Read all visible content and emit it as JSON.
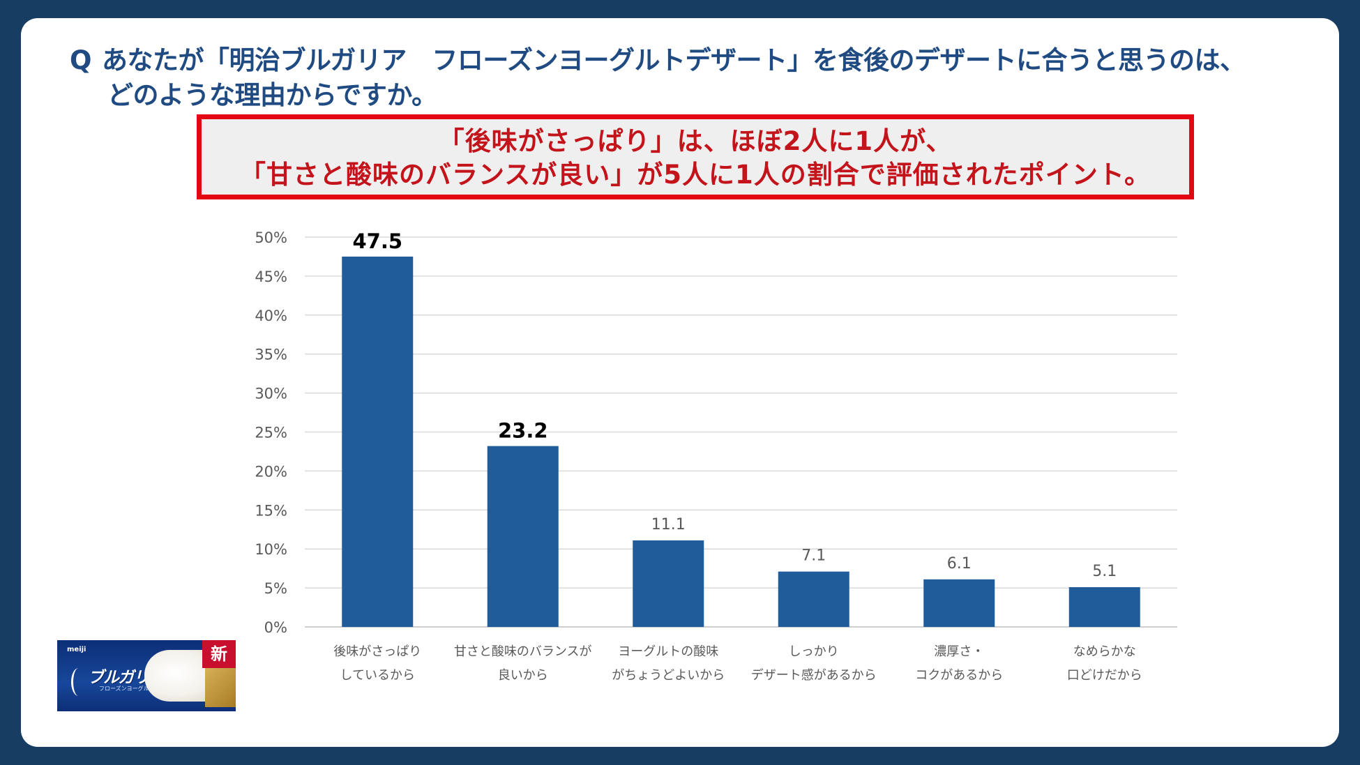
{
  "question": {
    "mark": "Q",
    "line1": "あなたが「明治ブルガリア　フローズンヨーグルトデザート」を食後のデザートに合うと思うのは、",
    "line2": "どのような理由からですか。"
  },
  "highlight": {
    "line1": "「後味がさっぱり」は、ほぼ2人に1人が、",
    "line2": "「甘さと酸味のバランスが良い」が5人に1人の割合で評価されたポイント。"
  },
  "chart_data": {
    "type": "bar",
    "categories": [
      [
        "後味がさっぱり",
        "しているから"
      ],
      [
        "甘さと酸味のバランスが",
        "良いから"
      ],
      [
        "ヨーグルトの酸味",
        "がちょうどよいから"
      ],
      [
        "しっかり",
        "デザート感があるから"
      ],
      [
        "濃厚さ・",
        "コクがあるから"
      ],
      [
        "なめらかな",
        "口どけだから"
      ]
    ],
    "values": [
      47.5,
      23.2,
      11.1,
      7.1,
      6.1,
      5.1
    ],
    "value_labels": [
      "47.5",
      "23.2",
      "11.1",
      "7.1",
      "6.1",
      "5.1"
    ],
    "emphasized_labels": [
      true,
      true,
      false,
      false,
      false,
      false
    ],
    "ylim": [
      0,
      50
    ],
    "yticks": [
      "0%",
      "5%",
      "10%",
      "15%",
      "20%",
      "25%",
      "30%",
      "35%",
      "40%",
      "45%",
      "50%"
    ],
    "grid": true,
    "legend": "none"
  },
  "product": {
    "maker": "meiji",
    "brand": "ブルガリア",
    "subtitle": "フローズンヨーグルトデザート",
    "badge": "新"
  },
  "colors": {
    "background": "#173d63",
    "bar": "#1f5c99",
    "title": "#1f4b82",
    "highlight_border": "#e30613",
    "highlight_text": "#c4141b"
  }
}
